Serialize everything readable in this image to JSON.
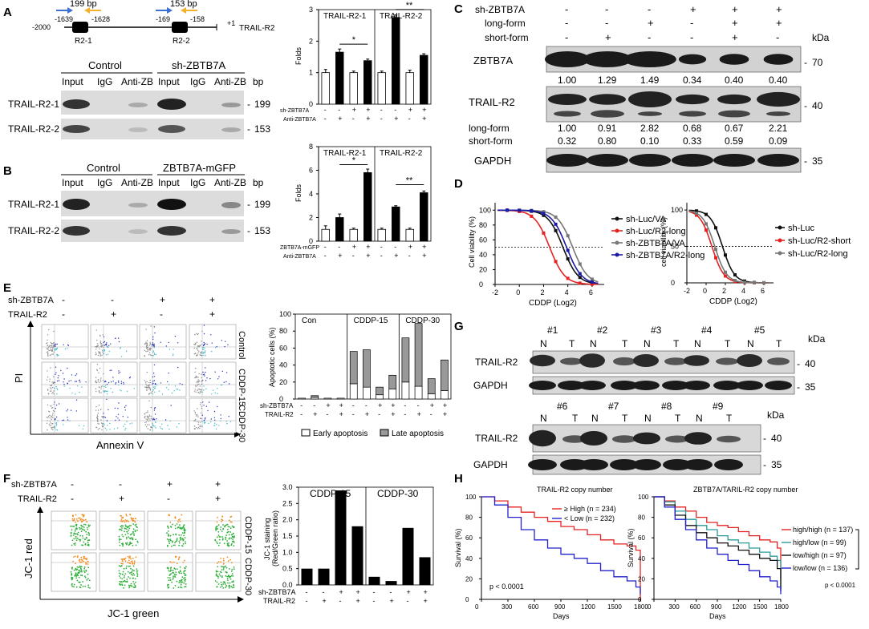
{
  "panels": {
    "A": "A",
    "B": "B",
    "C": "C",
    "D": "D",
    "E": "E",
    "F": "F",
    "G": "G",
    "H": "H"
  },
  "panelA": {
    "prom": {
      "bp1": "199 bp",
      "bp2": "153 bp",
      "p1": "-1639",
      "p2": "-1628",
      "p3": "-169",
      "p4": "-158",
      "start": "-2000",
      "end": "+1",
      "gene": "TRAIL-R2",
      "r1": "R2-1",
      "r2": "R2-2"
    },
    "gel": {
      "control": "Control",
      "sh": "sh-ZBTB7A",
      "lanes": [
        "Input",
        "IgG",
        "Anti-ZB",
        "Input",
        "IgG",
        "Anti-ZB"
      ],
      "bp": "bp",
      "rows": [
        "TRAIL-R2-1",
        "TRAIL-R2-2"
      ],
      "sizes": [
        "199",
        "153"
      ]
    }
  },
  "panelB": {
    "gel": {
      "control": "Control",
      "gfp": "ZBTB7A-mGFP",
      "lanes": [
        "Input",
        "IgG",
        "Anti-ZB",
        "Input",
        "IgG",
        "Anti-ZB"
      ],
      "bp": "bp",
      "rows": [
        "TRAIL-R2-1",
        "TRAIL-R2-2"
      ],
      "sizes": [
        "199",
        "153"
      ]
    }
  },
  "panelC": {
    "conds": {
      "label1": "sh-ZBTB7A",
      "label2": "long-form",
      "label3": "short-form",
      "row1": [
        "-",
        "-",
        "-",
        "+",
        "+",
        "+"
      ],
      "row2": [
        "-",
        "-",
        "+",
        "-",
        "+",
        "+"
      ],
      "row3": [
        "-",
        "+",
        "-",
        "-",
        "+",
        "-"
      ],
      "kda": "kDa"
    },
    "zbtb": {
      "label": "ZBTB7A",
      "vals": [
        "1.00",
        "1.29",
        "1.49",
        "0.34",
        "0.40",
        "0.40"
      ],
      "kda": "70"
    },
    "trail": {
      "label": "TRAIL-R2",
      "kda": "40",
      "longl": "long-form",
      "shortl": "short-form",
      "long": [
        "1.00",
        "0.91",
        "2.82",
        "0.68",
        "0.67",
        "2.21"
      ],
      "short": [
        "0.32",
        "0.80",
        "0.10",
        "0.33",
        "0.59",
        "0.09"
      ]
    },
    "gapdh": {
      "label": "GAPDH",
      "kda": "35"
    }
  },
  "panelE": {
    "rowl1": "sh-ZBTB7A",
    "rowl2": "TRAIL-R2",
    "cond1": [
      "-",
      "-",
      "+",
      "+"
    ],
    "cond2": [
      "-",
      "+",
      "-",
      "+"
    ],
    "ylab": "PI",
    "xlab": "Annexin V",
    "rows": [
      "Control",
      "CDDP-15",
      "CDDP-30"
    ]
  },
  "panelF": {
    "rowl1": "sh-ZBTB7A",
    "rowl2": "TRAIL-R2",
    "cond1": [
      "-",
      "-",
      "+",
      "+"
    ],
    "cond2": [
      "-",
      "+",
      "-",
      "+"
    ],
    "ylab": "JC-1 red",
    "xlab": "JC-1 green",
    "rows": [
      "CDDP-15",
      "CDDP-30"
    ]
  },
  "panelG": {
    "top": {
      "pairs": [
        "#1",
        "#2",
        "#3",
        "#4",
        "#5"
      ]
    },
    "bottom": {
      "pairs": [
        "#6",
        "#7",
        "#8",
        "#9"
      ]
    },
    "n": "N",
    "t": "T",
    "trail": "TRAIL-R2",
    "gapdh": "GAPDH",
    "kda": "kDa",
    "k40": "40",
    "k35": "35"
  },
  "chart_data": [
    {
      "id": "A-chip",
      "type": "bar",
      "ylabel": "Folds",
      "ylim": [
        0,
        3
      ],
      "yticks": [
        "0",
        "1",
        "2",
        "3"
      ],
      "groups": [
        "TRAIL-R2-1",
        "TRAIL-R2-2"
      ],
      "values": [
        1.0,
        1.65,
        1.0,
        1.38,
        1.0,
        2.75,
        1.0,
        1.55
      ],
      "errors": [
        0.1,
        0.1,
        0.05,
        0.05,
        0.05,
        0.08,
        0.08,
        0.05
      ],
      "fills": [
        "white",
        "black",
        "white",
        "black",
        "white",
        "black",
        "white",
        "black"
      ],
      "rowlabels": [
        "sh-ZBTB7A",
        "Anti-ZBTB7A"
      ],
      "row1": [
        "-",
        "-",
        "+",
        "+",
        "-",
        "-",
        "+",
        "+"
      ],
      "row2": [
        "-",
        "+",
        "-",
        "+",
        "-",
        "+",
        "-",
        "+"
      ],
      "sig": [
        "*",
        "**"
      ]
    },
    {
      "id": "B-chip",
      "type": "bar",
      "ylabel": "Folds",
      "ylim": [
        0,
        8
      ],
      "yticks": [
        "0",
        "2",
        "4",
        "6",
        "8"
      ],
      "groups": [
        "TRAIL-R2-1",
        "TRAIL-R2-2"
      ],
      "values": [
        1.0,
        2.0,
        1.0,
        5.8,
        1.0,
        2.9,
        1.0,
        4.1
      ],
      "errors": [
        0.3,
        0.3,
        0.1,
        0.3,
        0.1,
        0.1,
        0.1,
        0.15
      ],
      "fills": [
        "white",
        "black",
        "white",
        "black",
        "white",
        "black",
        "white",
        "black"
      ],
      "rowlabels": [
        "ZBTB7A-mGFP",
        "Anti-ZBTB7A"
      ],
      "row1": [
        "-",
        "-",
        "+",
        "+",
        "-",
        "-",
        "+",
        "+"
      ],
      "row2": [
        "-",
        "+",
        "-",
        "+",
        "-",
        "+",
        "-",
        "+"
      ],
      "sig": [
        "*",
        "**"
      ]
    },
    {
      "id": "D-left",
      "type": "line",
      "ylabel": "Cell viability (%)",
      "xlabel": "CDDP (Log2)",
      "xlim": [
        -2,
        7
      ],
      "ylim": [
        0,
        110
      ],
      "xticks": [
        "-2",
        "0",
        "2",
        "4",
        "6"
      ],
      "yticks": [
        "0",
        "20",
        "40",
        "60",
        "80",
        "100"
      ],
      "series": [
        {
          "name": "sh-Luc/VA",
          "color": "#111111",
          "ic50": 3.6
        },
        {
          "name": "sh-Luc/R2-long",
          "color": "#e52222",
          "ic50": 2.5
        },
        {
          "name": "sh-ZBTB7A/VA",
          "color": "#777777",
          "ic50": 4.4
        },
        {
          "name": "sh-ZBTB7A/R2-long",
          "color": "#1a1aa8",
          "ic50": 3.9
        }
      ]
    },
    {
      "id": "D-right",
      "type": "line",
      "ylabel": "cell viability (%)",
      "xlabel": "CDDP (Log2)",
      "xlim": [
        -2,
        7
      ],
      "ylim": [
        0,
        110
      ],
      "xticks": [
        "-2",
        "0",
        "2",
        "4",
        "6"
      ],
      "yticks": [
        "0",
        "50",
        "100"
      ],
      "series": [
        {
          "name": "sh-Luc",
          "color": "#111111",
          "ic50": 1.7
        },
        {
          "name": "sh-Luc/R2-short",
          "color": "#e52222",
          "ic50": 0.6
        },
        {
          "name": "sh-Luc/R2-long",
          "color": "#777777",
          "ic50": 0.9
        }
      ]
    },
    {
      "id": "E-apop",
      "type": "bar",
      "ylabel": "Apoptotic cells (%)",
      "ylim": [
        0,
        100
      ],
      "yticks": [
        "0",
        "20",
        "40",
        "60",
        "80",
        "100"
      ],
      "groups": [
        "Con",
        "CDDP-15",
        "CDDP-30"
      ],
      "early": [
        1,
        2,
        1,
        1,
        18,
        14,
        5,
        12,
        20,
        15,
        6,
        10
      ],
      "late": [
        0,
        2,
        0,
        0,
        38,
        44,
        9,
        16,
        52,
        74,
        18,
        36
      ],
      "row1": [
        "-",
        "-",
        "+",
        "+",
        "-",
        "-",
        "+",
        "+",
        "-",
        "-",
        "+",
        "+"
      ],
      "row2": [
        "-",
        "+",
        "-",
        "+",
        "-",
        "+",
        "-",
        "+",
        "-",
        "+",
        "-",
        "+"
      ],
      "rowlabels": [
        "sh-ZBTB7A",
        "TRAIL-R2"
      ],
      "legend": [
        "Early apoptosis",
        "Late apoptosis"
      ]
    },
    {
      "id": "F-jc1",
      "type": "bar",
      "ylabel": "JC-1 staining (Red/Green ratio)",
      "ylim": [
        0,
        3
      ],
      "yticks": [
        "0.0",
        "0.5",
        "1.0",
        "1.5",
        "2.0",
        "2.5",
        "3.0"
      ],
      "groups": [
        "CDDP-15",
        "CDDP-30"
      ],
      "values": [
        0.5,
        0.5,
        2.9,
        1.8,
        0.25,
        0.12,
        1.75,
        0.85
      ],
      "row1": [
        "-",
        "-",
        "+",
        "+",
        "-",
        "-",
        "+",
        "+"
      ],
      "row2": [
        "-",
        "+",
        "-",
        "+",
        "-",
        "+",
        "-",
        "+"
      ],
      "rowlabels": [
        "sh-ZBTB7A",
        "TRAIL-R2"
      ]
    },
    {
      "id": "H-left",
      "type": "line",
      "title": "TRAIL-R2 copy number",
      "ylabel": "Survival (%)",
      "xlabel": "Days",
      "xticks": [
        "0",
        "300",
        "600",
        "900",
        "1200",
        "1500",
        "1800"
      ],
      "yticks": [
        "0",
        "20",
        "40",
        "60",
        "80",
        "100"
      ],
      "pval": "p < 0.0001",
      "series": [
        {
          "name": "≥ High (n = 234)",
          "color": "#e52222",
          "pts": [
            [
              0,
              100
            ],
            [
              150,
              96
            ],
            [
              300,
              90
            ],
            [
              450,
              85
            ],
            [
              600,
              80
            ],
            [
              750,
              76
            ],
            [
              900,
              71
            ],
            [
              1050,
              68
            ],
            [
              1200,
              63
            ],
            [
              1350,
              58
            ],
            [
              1500,
              54
            ],
            [
              1650,
              52
            ],
            [
              1750,
              48
            ],
            [
              1800,
              0
            ]
          ]
        },
        {
          "name": "< Low (n = 232)",
          "color": "#2222cc",
          "pts": [
            [
              0,
              100
            ],
            [
              150,
              92
            ],
            [
              300,
              80
            ],
            [
              450,
              68
            ],
            [
              600,
              58
            ],
            [
              750,
              50
            ],
            [
              900,
              44
            ],
            [
              1050,
              40
            ],
            [
              1200,
              35
            ],
            [
              1350,
              28
            ],
            [
              1500,
              22
            ],
            [
              1650,
              18
            ],
            [
              1750,
              12
            ],
            [
              1800,
              5
            ]
          ]
        }
      ]
    },
    {
      "id": "H-right",
      "type": "line",
      "title": "ZBTB7A/TARIL-R2  copy number",
      "ylabel": "Survival (%)",
      "xlabel": "Days",
      "xticks": [
        "0",
        "300",
        "600",
        "900",
        "1200",
        "1500",
        "1800"
      ],
      "yticks": [
        "0",
        "20",
        "40",
        "60",
        "80",
        "100"
      ],
      "pval": "p < 0.0001",
      "series": [
        {
          "name": "high/high (n = 137)",
          "color": "#e52222",
          "pts": [
            [
              0,
              100
            ],
            [
              150,
              96
            ],
            [
              300,
              90
            ],
            [
              450,
              86
            ],
            [
              600,
              80
            ],
            [
              750,
              75
            ],
            [
              900,
              72
            ],
            [
              1050,
              70
            ],
            [
              1200,
              66
            ],
            [
              1350,
              62
            ],
            [
              1500,
              58
            ],
            [
              1650,
              56
            ],
            [
              1750,
              50
            ],
            [
              1800,
              20
            ]
          ]
        },
        {
          "name": "high/low (n = 99)",
          "color": "#2a9a9a",
          "pts": [
            [
              0,
              100
            ],
            [
              150,
              95
            ],
            [
              300,
              86
            ],
            [
              450,
              78
            ],
            [
              600,
              72
            ],
            [
              750,
              68
            ],
            [
              900,
              62
            ],
            [
              1050,
              58
            ],
            [
              1200,
              55
            ],
            [
              1350,
              50
            ],
            [
              1500,
              46
            ],
            [
              1650,
              42
            ],
            [
              1750,
              38
            ],
            [
              1800,
              10
            ]
          ]
        },
        {
          "name": "low/high (n = 97)",
          "color": "#111111",
          "pts": [
            [
              0,
              100
            ],
            [
              150,
              92
            ],
            [
              300,
              82
            ],
            [
              450,
              72
            ],
            [
              600,
              65
            ],
            [
              750,
              60
            ],
            [
              900,
              55
            ],
            [
              1050,
              52
            ],
            [
              1200,
              48
            ],
            [
              1350,
              44
            ],
            [
              1500,
              40
            ],
            [
              1650,
              38
            ],
            [
              1750,
              30
            ],
            [
              1800,
              8
            ]
          ]
        },
        {
          "name": "low/low (n = 136)",
          "color": "#2222cc",
          "pts": [
            [
              0,
              100
            ],
            [
              150,
              90
            ],
            [
              300,
              78
            ],
            [
              450,
              68
            ],
            [
              600,
              58
            ],
            [
              750,
              50
            ],
            [
              900,
              44
            ],
            [
              1050,
              38
            ],
            [
              1200,
              34
            ],
            [
              1350,
              28
            ],
            [
              1500,
              22
            ],
            [
              1650,
              18
            ],
            [
              1750,
              12
            ],
            [
              1800,
              5
            ]
          ]
        }
      ]
    }
  ]
}
